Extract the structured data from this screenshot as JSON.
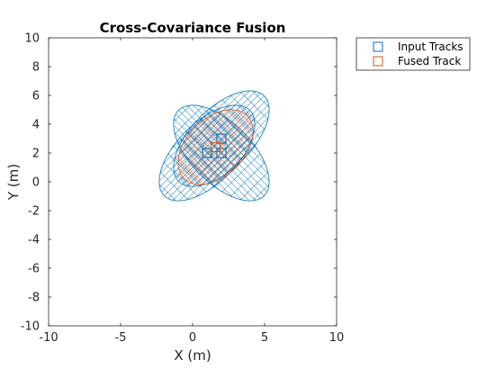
{
  "chart_data": {
    "type": "scatter",
    "title": "Cross-Covariance Fusion",
    "xlabel": "X (m)",
    "ylabel": "Y (m)",
    "xlim": [
      -10,
      10
    ],
    "ylim": [
      -10,
      10
    ],
    "xticks": [
      -10,
      -5,
      0,
      5,
      10
    ],
    "yticks": [
      -10,
      -8,
      -6,
      -4,
      -2,
      0,
      2,
      4,
      6,
      8,
      10
    ],
    "grid": false,
    "legend_position": "outside-top-right",
    "series": [
      {
        "name": "Input Tracks",
        "color": "#0072BD",
        "marker": "square",
        "points": [
          {
            "x": 1.0,
            "y": 2.0
          },
          {
            "x": 2.0,
            "y": 3.0
          },
          {
            "x": 2.0,
            "y": 2.0
          }
        ],
        "covariance_ellipsoids": [
          {
            "cx": 1.0,
            "cy": 2.0,
            "a": 4.2,
            "b": 2.1,
            "angle_deg": 45
          },
          {
            "cx": 2.0,
            "cy": 3.0,
            "a": 4.2,
            "b": 2.1,
            "angle_deg": 45
          },
          {
            "cx": 2.0,
            "cy": 2.0,
            "a": 4.2,
            "b": 2.1,
            "angle_deg": -45
          }
        ]
      },
      {
        "name": "Fused Track",
        "color": "#D95319",
        "marker": "square",
        "points": [
          {
            "x": 1.6,
            "y": 2.4
          }
        ],
        "covariance_ellipsoids": [
          {
            "cx": 1.6,
            "cy": 2.4,
            "a": 3.1,
            "b": 2.0,
            "angle_deg": 45
          }
        ]
      }
    ]
  }
}
